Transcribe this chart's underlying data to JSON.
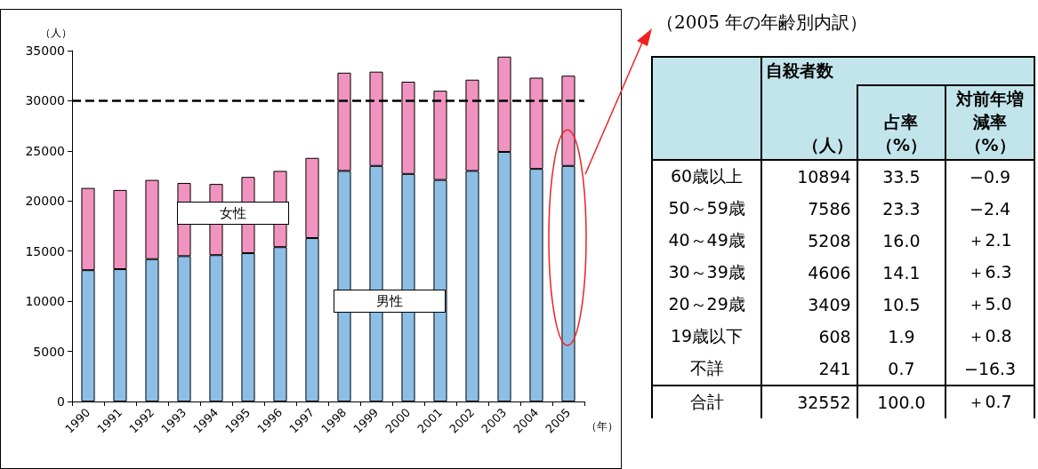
{
  "chart_data": [
    {
      "type": "bar",
      "stacked": true,
      "ylabel": "（人）",
      "xlabel": "（年）",
      "categories": [
        "1990",
        "1991",
        "1992",
        "1993",
        "1994",
        "1995",
        "1996",
        "1997",
        "1998",
        "1999",
        "2000",
        "2001",
        "2002",
        "2003",
        "2004",
        "2005"
      ],
      "series": [
        {
          "name": "男性",
          "color": "#8dbfe6",
          "values": [
            13100,
            13200,
            14200,
            14500,
            14600,
            14800,
            15400,
            16300,
            23000,
            23500,
            22700,
            22100,
            23000,
            24900,
            23200,
            23500
          ]
        },
        {
          "name": "女性",
          "color": "#f093bf",
          "values": [
            8200,
            7900,
            7900,
            7300,
            7100,
            7600,
            7600,
            8000,
            9800,
            9400,
            9200,
            8900,
            9100,
            9500,
            9100,
            9000
          ]
        }
      ],
      "ylim": [
        0,
        35000
      ],
      "yticks": [
        0,
        5000,
        10000,
        15000,
        20000,
        25000,
        30000,
        35000
      ],
      "grid": false,
      "legend": false,
      "ref_lines": [
        {
          "axis": "y",
          "value": 30000,
          "color": "#000000",
          "line_style": "dashed"
        }
      ]
    },
    {
      "type": "other",
      "title": "（2005 年の年齢別内訳）",
      "annotations": [
        "自殺者数"
      ],
      "categories": [
        "60歳以上",
        "50～59歳",
        "40～49歳",
        "30～39歳",
        "20～29歳",
        "19歳以下",
        "不詳",
        "合計"
      ],
      "data_labels": true,
      "series": [
        {
          "name": "（人）",
          "values": [
            10894,
            7586,
            5208,
            4606,
            3409,
            608,
            241,
            32552
          ]
        },
        {
          "name": "占率（%）",
          "values": [
            33.5,
            23.3,
            16.0,
            14.1,
            10.5,
            1.9,
            0.7,
            100.0
          ],
          "value_labels": [
            "33.5",
            "23.3",
            "16.0",
            "14.1",
            "10.5",
            "1.9",
            "0.7",
            "100.0"
          ]
        },
        {
          "name": "対前年増減率（%）",
          "values": [
            -0.9,
            -2.4,
            2.1,
            6.3,
            5.0,
            0.8,
            -16.3,
            0.7
          ],
          "value_labels": [
            "−0.9",
            "−2.4",
            "＋2.1",
            "＋6.3",
            "＋5.0",
            "＋0.8",
            "−16.3",
            "＋0.7"
          ]
        }
      ]
    }
  ]
}
